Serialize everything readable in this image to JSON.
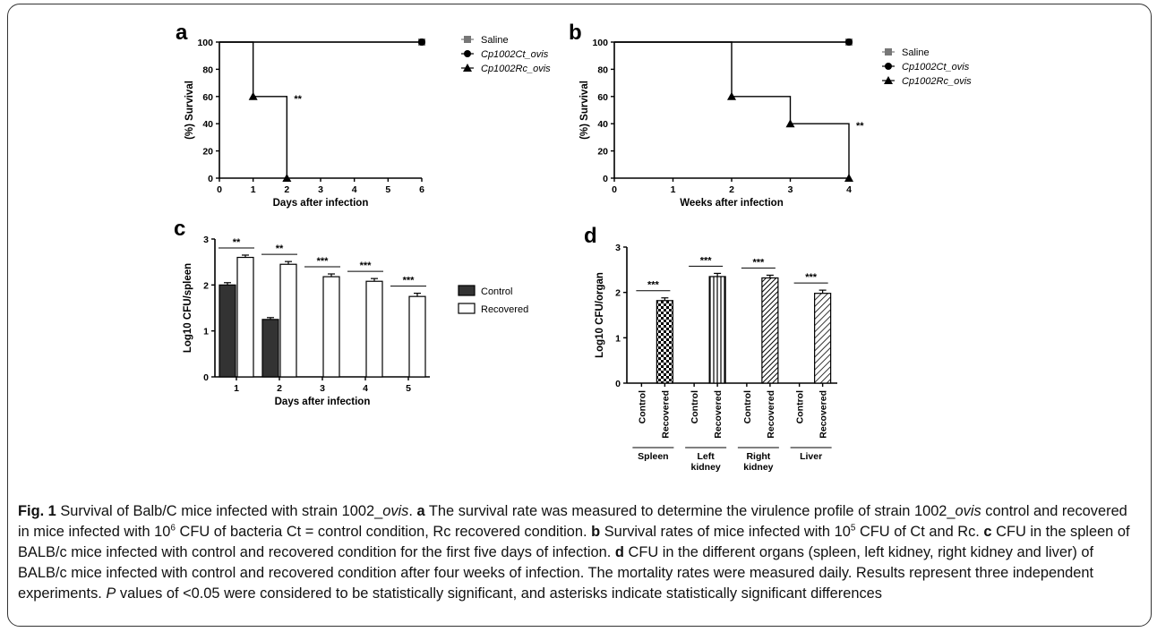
{
  "charts": [
    {
      "id": "a",
      "chart_data": {
        "type": "line",
        "panel_label": "a",
        "xlabel": "Days after infection",
        "ylabel": "(%) Survival",
        "xlim": [
          0,
          6
        ],
        "ylim": [
          0,
          100
        ],
        "xticks": [
          0,
          1,
          2,
          3,
          4,
          5,
          6
        ],
        "yticks": [
          0,
          20,
          40,
          60,
          80,
          100
        ],
        "series": [
          {
            "name": "Saline",
            "marker": "square",
            "color": "#777777",
            "x": [
              0,
              6
            ],
            "y": [
              100,
              100
            ]
          },
          {
            "name": "Cp1002Ct_ovis",
            "marker": "circle",
            "color": "#000000",
            "x": [
              0,
              6
            ],
            "y": [
              100,
              100
            ]
          },
          {
            "name": "Cp1002Rc_ovis",
            "marker": "triangle",
            "color": "#000000",
            "x": [
              0,
              1,
              2
            ],
            "y": [
              100,
              60,
              0
            ]
          }
        ],
        "annotations": [
          {
            "text": "**",
            "x": 2,
            "y": 60
          }
        ],
        "legend_position": "right"
      }
    },
    {
      "id": "b",
      "chart_data": {
        "type": "line",
        "panel_label": "b",
        "xlabel": "Weeks after infection",
        "ylabel": "(%) Survival",
        "xlim": [
          0,
          4
        ],
        "ylim": [
          0,
          100
        ],
        "xticks": [
          0,
          1,
          2,
          3,
          4
        ],
        "yticks": [
          0,
          20,
          40,
          60,
          80,
          100
        ],
        "series": [
          {
            "name": "Saline",
            "marker": "square",
            "color": "#777777",
            "x": [
              0,
              4
            ],
            "y": [
              100,
              100
            ]
          },
          {
            "name": "Cp1002Ct_ovis",
            "marker": "circle",
            "color": "#000000",
            "x": [
              0,
              4
            ],
            "y": [
              100,
              100
            ]
          },
          {
            "name": "Cp1002Rc_ovis",
            "marker": "triangle",
            "color": "#000000",
            "x": [
              0,
              2,
              3,
              4
            ],
            "y": [
              100,
              60,
              40,
              0
            ]
          }
        ],
        "annotations": [
          {
            "text": "**",
            "x": 4,
            "y": 40
          }
        ],
        "legend_position": "right"
      }
    },
    {
      "id": "c",
      "chart_data": {
        "type": "bar",
        "panel_label": "c",
        "xlabel": "Days after infection",
        "ylabel": "Log10 CFU/spleen",
        "ylim": [
          0,
          3
        ],
        "yticks": [
          0,
          1,
          2,
          3
        ],
        "categories": [
          "1",
          "2",
          "3",
          "4",
          "5"
        ],
        "series": [
          {
            "name": "Control",
            "color": "#333333",
            "values": [
              2.0,
              1.25,
              0,
              0,
              0
            ],
            "errors": [
              0.05,
              0.04,
              0,
              0,
              0
            ]
          },
          {
            "name": "Recovered",
            "color": "#ffffff",
            "values": [
              2.6,
              2.45,
              2.18,
              2.08,
              1.75
            ],
            "errors": [
              0.05,
              0.06,
              0.06,
              0.06,
              0.07
            ]
          }
        ],
        "significance": [
          "**",
          "**",
          "***",
          "***",
          "***"
        ],
        "legend_position": "right"
      }
    },
    {
      "id": "d",
      "chart_data": {
        "type": "bar",
        "panel_label": "d",
        "ylabel": "Log10 CFU/organ",
        "ylim": [
          0,
          3
        ],
        "yticks": [
          0,
          1,
          2,
          3
        ],
        "groups": [
          "Spleen",
          "Left kidney",
          "Right kidney",
          "Liver"
        ],
        "bar_labels": [
          "Control",
          "Recovered"
        ],
        "series": [
          {
            "name": "Control",
            "values": [
              0,
              0,
              0,
              0
            ]
          },
          {
            "name": "Recovered",
            "values": [
              1.82,
              2.35,
              2.32,
              1.98
            ],
            "errors": [
              0.06,
              0.07,
              0.06,
              0.07
            ],
            "patterns": [
              "checker",
              "vertical",
              "diagonal-dense",
              "diagonal"
            ]
          }
        ],
        "significance": [
          "***",
          "***",
          "***",
          "***"
        ]
      }
    }
  ],
  "caption": {
    "fig_label": "Fig. 1",
    "title": "Survival of Balb/C mice infected with strain 1002_",
    "title_italic": "ovis",
    "title_end": ".",
    "a_label": "a",
    "a_text_1": "The survival rate was measured to determine the virulence profile of strain 1002_",
    "a_italic": "ovis",
    "a_text_2": "control and recovered in mice infected with 10",
    "a_sup": "6",
    "a_text_3": "CFU of bacteria Ct = control condition, Rc recovered condition.",
    "b_label": "b",
    "b_text_1": "Survival rates of mice infected with 10",
    "b_sup": "5",
    "b_text_2": "CFU of Ct and Rc.",
    "c_label": "c",
    "c_text": "CFU in the spleen of BALB/c mice infected with control and recovered condition for the first five days of infection.",
    "d_label": "d",
    "d_text": "CFU in the different organs (spleen, left kidney, right kidney and liver) of BALB/c mice infected with control and recovered condition after four weeks of infection. The mortality rates were measured daily. Results represent three independent experiments.",
    "p_italic": "P",
    "p_text": "values of <0.05 were considered to be statistically significant, and asterisks indicate statistically significant differences"
  }
}
